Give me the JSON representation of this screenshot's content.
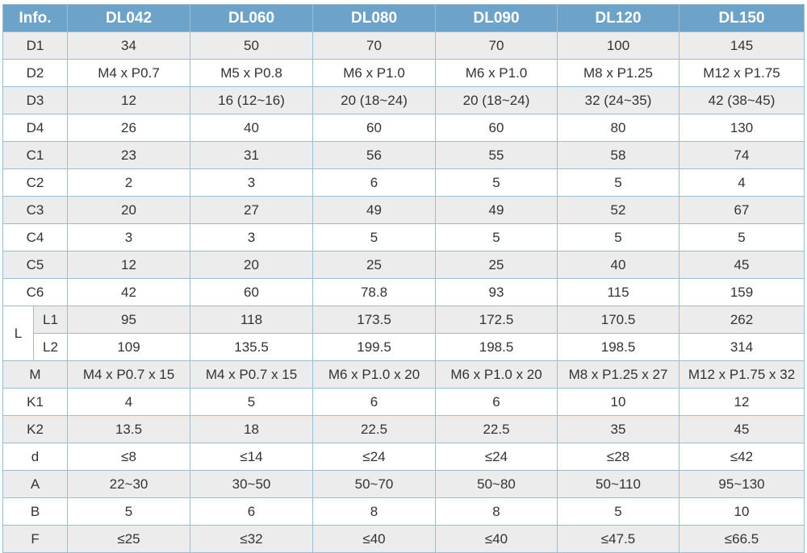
{
  "header": {
    "corner": "Info.",
    "models": [
      "DL042",
      "DL060",
      "DL080",
      "DL090",
      "DL120",
      "DL150"
    ]
  },
  "rows": [
    {
      "label": "D1",
      "values": [
        "34",
        "50",
        "70",
        "70",
        "100",
        "145"
      ]
    },
    {
      "label": "D2",
      "values": [
        "M4 x P0.7",
        "M5 x P0.8",
        "M6 x P1.0",
        "M6 x P1.0",
        "M8 x P1.25",
        "M12 x P1.75"
      ]
    },
    {
      "label": "D3",
      "values": [
        "12",
        "16 (12~16)",
        "20 (18~24)",
        "20 (18~24)",
        "32 (24~35)",
        "42 (38~45)"
      ]
    },
    {
      "label": "D4",
      "values": [
        "26",
        "40",
        "60",
        "60",
        "80",
        "130"
      ]
    },
    {
      "label": "C1",
      "values": [
        "23",
        "31",
        "56",
        "55",
        "58",
        "74"
      ]
    },
    {
      "label": "C2",
      "values": [
        "2",
        "3",
        "6",
        "5",
        "5",
        "4"
      ]
    },
    {
      "label": "C3",
      "values": [
        "20",
        "27",
        "49",
        "49",
        "52",
        "67"
      ]
    },
    {
      "label": "C4",
      "values": [
        "3",
        "3",
        "5",
        "5",
        "5",
        "5"
      ]
    },
    {
      "label": "C5",
      "values": [
        "12",
        "20",
        "25",
        "25",
        "40",
        "45"
      ]
    },
    {
      "label": "C6",
      "values": [
        "42",
        "60",
        "78.8",
        "93",
        "115",
        "159"
      ]
    },
    {
      "group": "L",
      "label": "L1",
      "values": [
        "95",
        "118",
        "173.5",
        "172.5",
        "170.5",
        "262"
      ]
    },
    {
      "label": "L2",
      "values": [
        "109",
        "135.5",
        "199.5",
        "198.5",
        "198.5",
        "314"
      ]
    },
    {
      "label": "M",
      "values": [
        "M4 x P0.7 x 15",
        "M4 x P0.7 x 15",
        "M6 x P1.0 x 20",
        "M6 x P1.0 x 20",
        "M8 x P1.25 x 27",
        "M12 x P1.75 x 32"
      ]
    },
    {
      "label": "K1",
      "values": [
        "4",
        "5",
        "6",
        "6",
        "10",
        "12"
      ]
    },
    {
      "label": "K2",
      "values": [
        "13.5",
        "18",
        "22.5",
        "22.5",
        "35",
        "45"
      ]
    },
    {
      "label": "d",
      "values": [
        "≤8",
        "≤14",
        "≤24",
        "≤24",
        "≤28",
        "≤42"
      ]
    },
    {
      "label": "A",
      "values": [
        "22~30",
        "30~50",
        "50~70",
        "50~80",
        "50~110",
        "95~130"
      ]
    },
    {
      "label": "B",
      "values": [
        "5",
        "6",
        "8",
        "8",
        "5",
        "10"
      ]
    },
    {
      "label": "F",
      "values": [
        "≤25",
        "≤32",
        "≤40",
        "≤40",
        "≤47.5",
        "≤66.5"
      ]
    }
  ]
}
